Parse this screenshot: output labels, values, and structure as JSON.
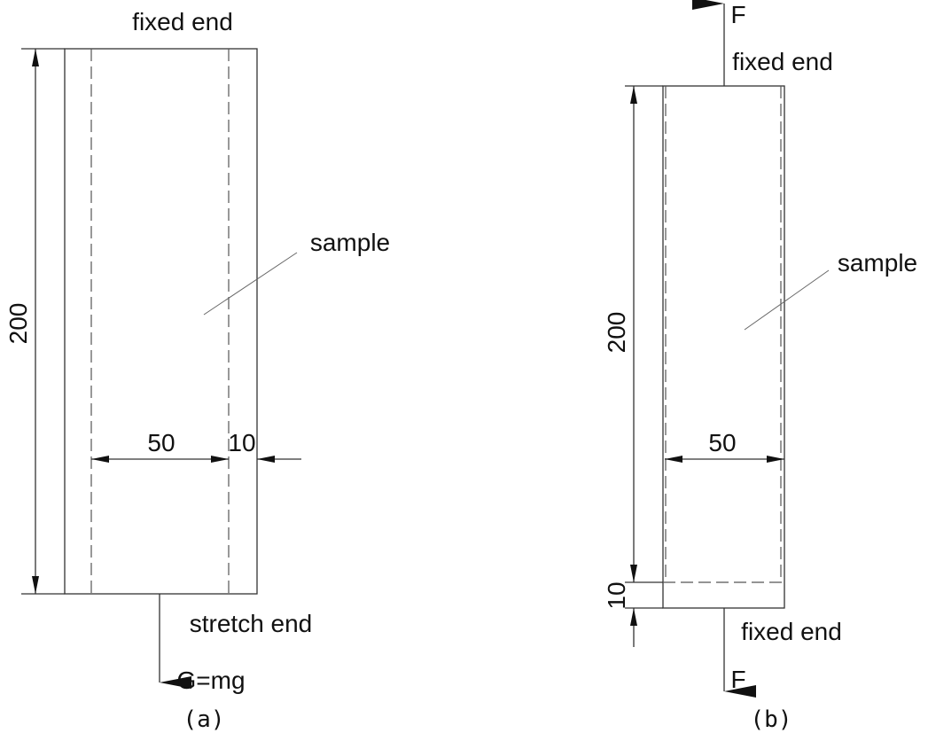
{
  "panels": [
    {
      "caption": "(a)",
      "top_label": "fixed end",
      "sample_label": "sample",
      "height_dim": "200",
      "width_dim": "50",
      "margin_dim": "10",
      "bottom_label": "stretch end",
      "load_label": "G=mg"
    },
    {
      "caption": "(b)",
      "top_force": "F",
      "top_label": "fixed end",
      "sample_label": "sample",
      "height_dim": "200",
      "width_dim": "50",
      "margin_dim": "10",
      "bottom_label": "fixed end",
      "bottom_force": "F"
    }
  ]
}
